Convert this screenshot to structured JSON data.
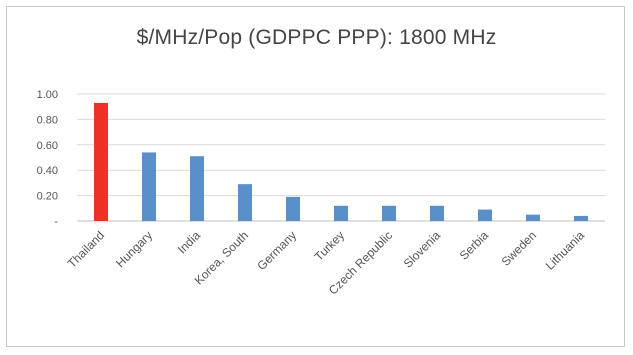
{
  "chart_data": {
    "type": "bar",
    "title": "$/MHz/Pop (GDPPC PPP):  1800 MHz",
    "xlabel": "",
    "ylabel": "",
    "categories": [
      "Thailand",
      "Hungary",
      "India",
      "Korea, South",
      "Germany",
      "Turkey",
      "Czech Republic",
      "Slovenia",
      "Serbia",
      "Sweden",
      "Lithuania"
    ],
    "values": [
      0.93,
      0.54,
      0.51,
      0.29,
      0.19,
      0.12,
      0.12,
      0.12,
      0.09,
      0.05,
      0.04
    ],
    "colors": [
      "#ee3124",
      "#5b8fc9",
      "#5b8fc9",
      "#5b8fc9",
      "#5b8fc9",
      "#5b8fc9",
      "#5b8fc9",
      "#5b8fc9",
      "#5b8fc9",
      "#5b8fc9",
      "#5b8fc9"
    ],
    "ylim": [
      0,
      1.0
    ],
    "yticks": [
      0,
      0.2,
      0.4,
      0.6,
      0.8,
      1.0
    ],
    "ytick_labels": [
      "-",
      "0.20",
      "0.40",
      "0.60",
      "0.80",
      "1.00"
    ],
    "grid": true,
    "legend": "none"
  }
}
